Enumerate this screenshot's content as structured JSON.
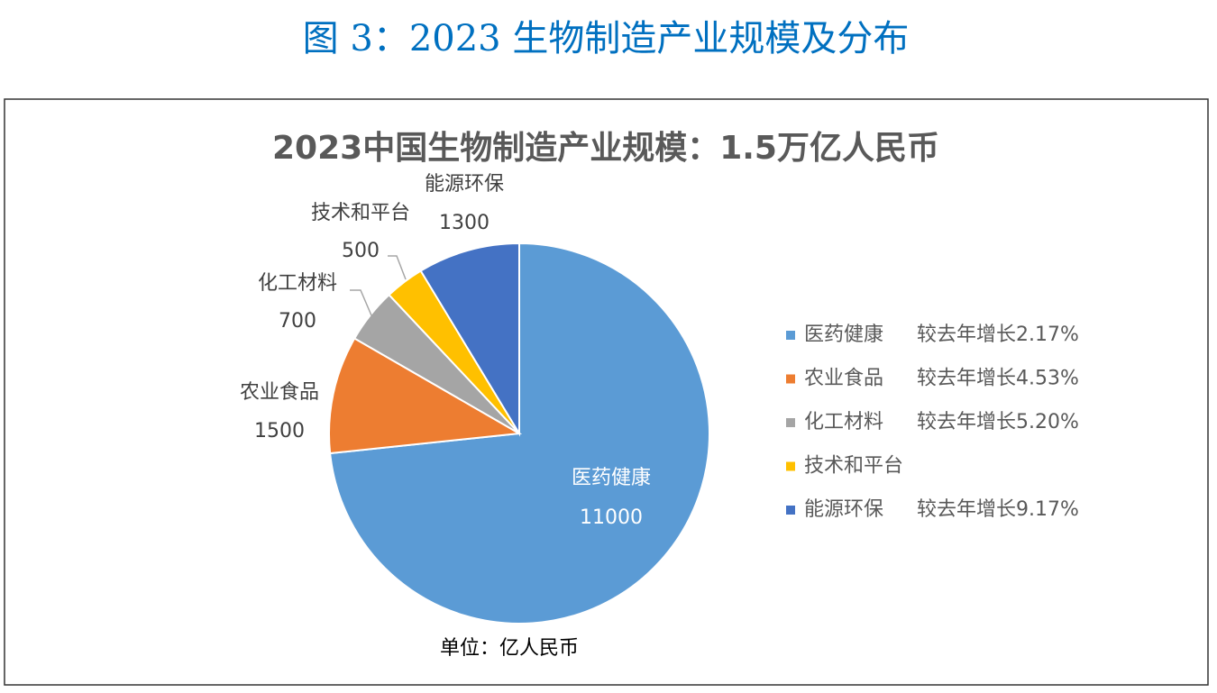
{
  "figure_title": "图 3：2023 生物制造产业规模及分布",
  "chart_data": {
    "type": "pie",
    "title": "2023中国生物制造产业规模：1.5万亿人民币",
    "categories": [
      "医药健康",
      "农业食品",
      "化工材料",
      "技术和平台",
      "能源环保"
    ],
    "values": [
      11000,
      1500,
      700,
      500,
      1300
    ],
    "colors": [
      "#5b9bd5",
      "#ed7d31",
      "#a5a5a5",
      "#ffc000",
      "#4472c4"
    ],
    "legend_notes": [
      "较去年增长2.17%",
      "较去年增长4.53%",
      "较去年增长5.20%",
      null,
      "较去年增长9.17%"
    ],
    "note": "单位：亿人民币"
  }
}
